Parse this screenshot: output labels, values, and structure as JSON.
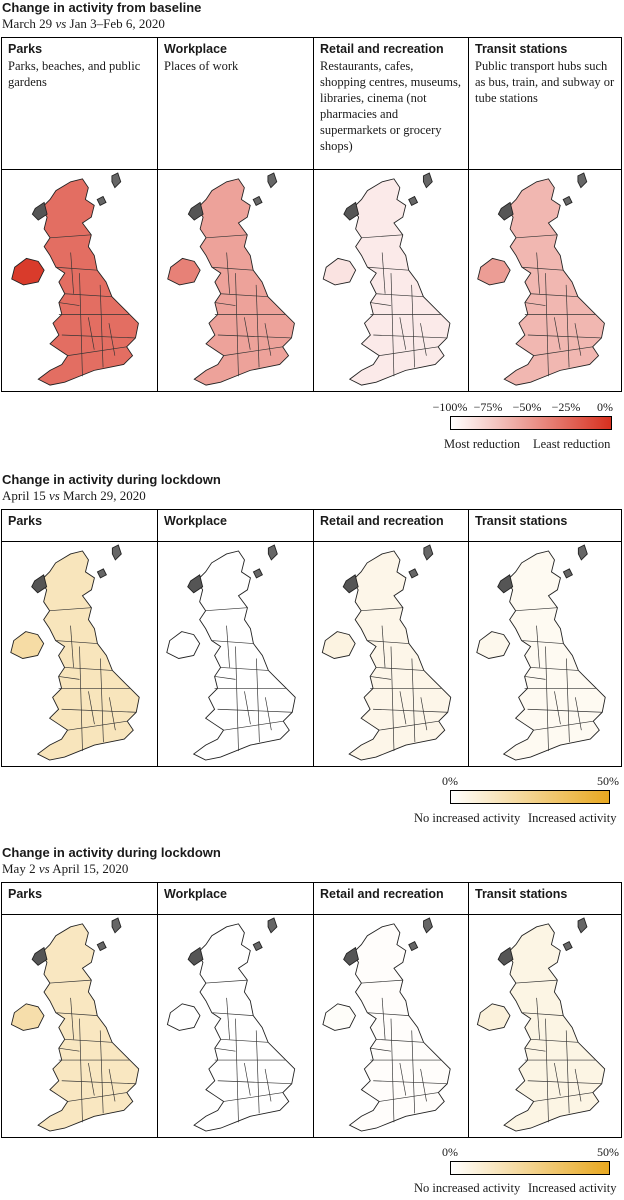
{
  "panels": [
    {
      "title": "Change in activity from baseline",
      "subtitle_a": "March 29",
      "subtitle_vs": "vs",
      "subtitle_b": "Jan 3–Feb 6, 2020",
      "scheme": "red",
      "cells": [
        {
          "name": "Parks",
          "desc": "Parks, beaches, and public gardens",
          "level": 0.7
        },
        {
          "name": "Workplace",
          "desc": "Places of work",
          "level": 0.45
        },
        {
          "name": "Retail and recreation",
          "desc": "Restaurants, cafes, shopping centres, museums, libraries, cinema (not pharmacies and supermarkets or grocery shops)",
          "level": 0.1
        },
        {
          "name": "Transit stations",
          "desc": "Public transport hubs such as bus, train, and subway or tube stations",
          "level": 0.35
        }
      ],
      "legend": {
        "ticks": [
          "−100%",
          "−75%",
          "−50%",
          "−25%",
          "0%"
        ],
        "left_label": "Most reduction",
        "right_label": "Least reduction",
        "color_low": "#ffffff",
        "color_high": "#d7301f"
      }
    },
    {
      "title": "Change in activity during lockdown",
      "subtitle_a": "April 15",
      "subtitle_vs": "vs",
      "subtitle_b": "March 29, 2020",
      "scheme": "orange",
      "cells": [
        {
          "name": "Parks",
          "desc": "",
          "level": 0.3
        },
        {
          "name": "Workplace",
          "desc": "",
          "level": 0.0
        },
        {
          "name": "Retail and recreation",
          "desc": "",
          "level": 0.1
        },
        {
          "name": "Transit stations",
          "desc": "",
          "level": 0.06
        }
      ],
      "legend": {
        "ticks": [
          "0%",
          "50%"
        ],
        "left_label": "No increased activity",
        "right_label": "Increased activity",
        "color_low": "#ffffff",
        "color_high": "#e8a820"
      }
    },
    {
      "title": "Change in activity during lockdown",
      "subtitle_a": "May 2",
      "subtitle_vs": "vs",
      "subtitle_b": "April 15, 2020",
      "scheme": "orange",
      "cells": [
        {
          "name": "Parks",
          "desc": "",
          "level": 0.28
        },
        {
          "name": "Workplace",
          "desc": "",
          "level": 0.0
        },
        {
          "name": "Retail and recreation",
          "desc": "",
          "level": 0.02
        },
        {
          "name": "Transit stations",
          "desc": "",
          "level": 0.12
        }
      ],
      "legend": {
        "ticks": [
          "0%",
          "50%"
        ],
        "left_label": "No increased activity",
        "right_label": "Increased activity",
        "color_low": "#ffffff",
        "color_high": "#e8a820"
      }
    }
  ]
}
